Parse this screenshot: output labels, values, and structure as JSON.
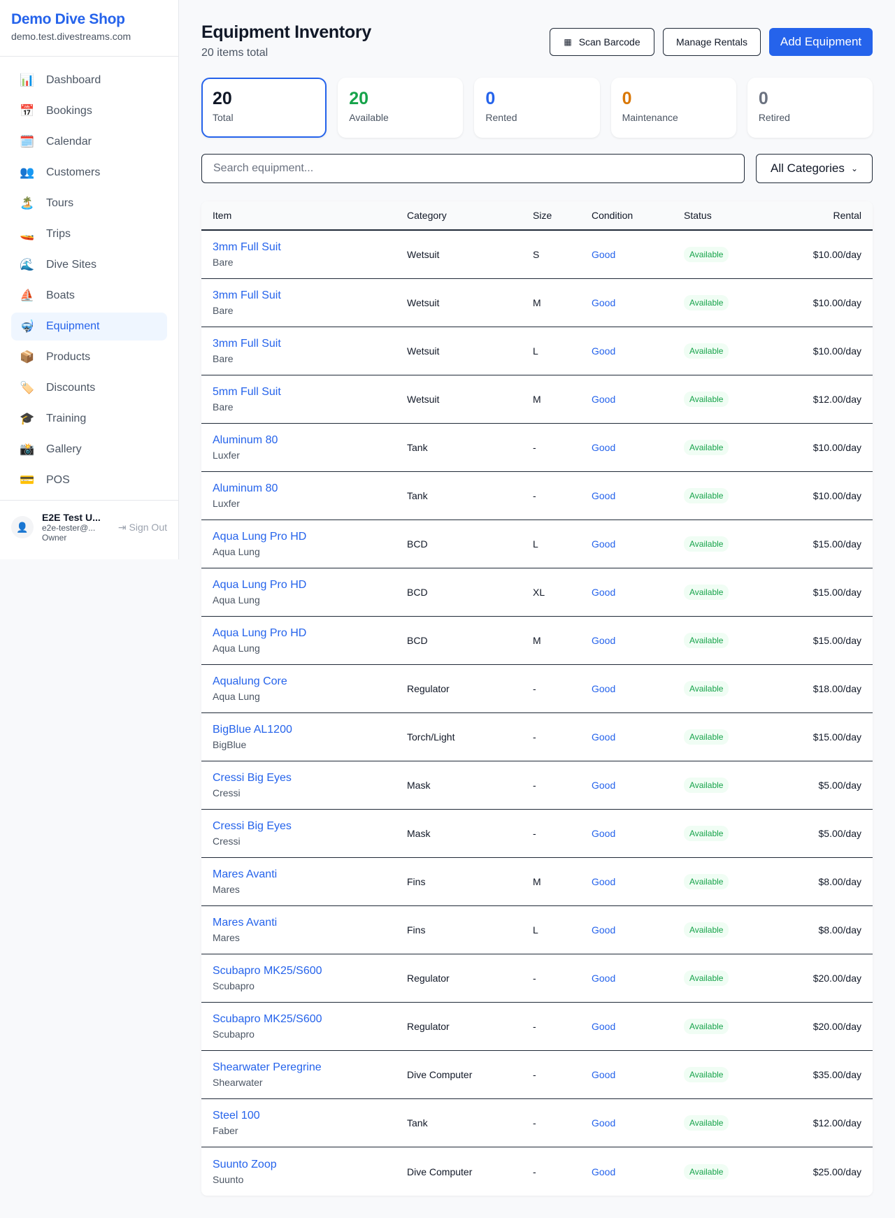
{
  "sidebar": {
    "shop_name": "Demo Dive Shop",
    "domain": "demo.test.divestreams.com",
    "items": [
      {
        "label": "Dashboard",
        "icon": "📊"
      },
      {
        "label": "Bookings",
        "icon": "📅"
      },
      {
        "label": "Calendar",
        "icon": "🗓️"
      },
      {
        "label": "Customers",
        "icon": "👥"
      },
      {
        "label": "Tours",
        "icon": "🏝️"
      },
      {
        "label": "Trips",
        "icon": "🚤"
      },
      {
        "label": "Dive Sites",
        "icon": "🌊"
      },
      {
        "label": "Boats",
        "icon": "⛵"
      },
      {
        "label": "Equipment",
        "icon": "🤿",
        "active": true
      },
      {
        "label": "Products",
        "icon": "📦"
      },
      {
        "label": "Discounts",
        "icon": "🏷️"
      },
      {
        "label": "Training",
        "icon": "🎓"
      },
      {
        "label": "Gallery",
        "icon": "📸"
      },
      {
        "label": "POS",
        "icon": "💳"
      }
    ],
    "user": {
      "name": "E2E Test U...",
      "email": "e2e-tester@...",
      "role": "Owner",
      "sign_out": "Sign Out"
    }
  },
  "header": {
    "title": "Equipment Inventory",
    "subtitle": "20 items total",
    "scan_label": "Scan Barcode",
    "manage_label": "Manage Rentals",
    "add_label": "Add Equipment"
  },
  "stats": [
    {
      "value": "20",
      "label": "Total",
      "color": "#111827"
    },
    {
      "value": "20",
      "label": "Available",
      "color": "#16a34a"
    },
    {
      "value": "0",
      "label": "Rented",
      "color": "#2563eb"
    },
    {
      "value": "0",
      "label": "Maintenance",
      "color": "#d97706"
    },
    {
      "value": "0",
      "label": "Retired",
      "color": "#6b7280"
    }
  ],
  "filters": {
    "search_placeholder": "Search equipment...",
    "category": "All Categories"
  },
  "table": {
    "headers": {
      "item": "Item",
      "category": "Category",
      "size": "Size",
      "condition": "Condition",
      "status": "Status",
      "rental": "Rental"
    },
    "rows": [
      [
        "3mm Full Suit",
        "Bare",
        "Wetsuit",
        "S",
        "Good",
        "Available",
        "$10.00/day"
      ],
      [
        "3mm Full Suit",
        "Bare",
        "Wetsuit",
        "M",
        "Good",
        "Available",
        "$10.00/day"
      ],
      [
        "3mm Full Suit",
        "Bare",
        "Wetsuit",
        "L",
        "Good",
        "Available",
        "$10.00/day"
      ],
      [
        "5mm Full Suit",
        "Bare",
        "Wetsuit",
        "M",
        "Good",
        "Available",
        "$12.00/day"
      ],
      [
        "Aluminum 80",
        "Luxfer",
        "Tank",
        "-",
        "Good",
        "Available",
        "$10.00/day"
      ],
      [
        "Aluminum 80",
        "Luxfer",
        "Tank",
        "-",
        "Good",
        "Available",
        "$10.00/day"
      ],
      [
        "Aqua Lung Pro HD",
        "Aqua Lung",
        "BCD",
        "L",
        "Good",
        "Available",
        "$15.00/day"
      ],
      [
        "Aqua Lung Pro HD",
        "Aqua Lung",
        "BCD",
        "XL",
        "Good",
        "Available",
        "$15.00/day"
      ],
      [
        "Aqua Lung Pro HD",
        "Aqua Lung",
        "BCD",
        "M",
        "Good",
        "Available",
        "$15.00/day"
      ],
      [
        "Aqualung Core",
        "Aqua Lung",
        "Regulator",
        "-",
        "Good",
        "Available",
        "$18.00/day"
      ],
      [
        "BigBlue AL1200",
        "BigBlue",
        "Torch/Light",
        "-",
        "Good",
        "Available",
        "$15.00/day"
      ],
      [
        "Cressi Big Eyes",
        "Cressi",
        "Mask",
        "-",
        "Good",
        "Available",
        "$5.00/day"
      ],
      [
        "Cressi Big Eyes",
        "Cressi",
        "Mask",
        "-",
        "Good",
        "Available",
        "$5.00/day"
      ],
      [
        "Mares Avanti",
        "Mares",
        "Fins",
        "M",
        "Good",
        "Available",
        "$8.00/day"
      ],
      [
        "Mares Avanti",
        "Mares",
        "Fins",
        "L",
        "Good",
        "Available",
        "$8.00/day"
      ],
      [
        "Scubapro MK25/S600",
        "Scubapro",
        "Regulator",
        "-",
        "Good",
        "Available",
        "$20.00/day"
      ],
      [
        "Scubapro MK25/S600",
        "Scubapro",
        "Regulator",
        "-",
        "Good",
        "Available",
        "$20.00/day"
      ],
      [
        "Shearwater Peregrine",
        "Shearwater",
        "Dive Computer",
        "-",
        "Good",
        "Available",
        "$35.00/day"
      ],
      [
        "Steel 100",
        "Faber",
        "Tank",
        "-",
        "Good",
        "Available",
        "$12.00/day"
      ],
      [
        "Suunto Zoop",
        "Suunto",
        "Dive Computer",
        "-",
        "Good",
        "Available",
        "$25.00/day"
      ]
    ]
  }
}
